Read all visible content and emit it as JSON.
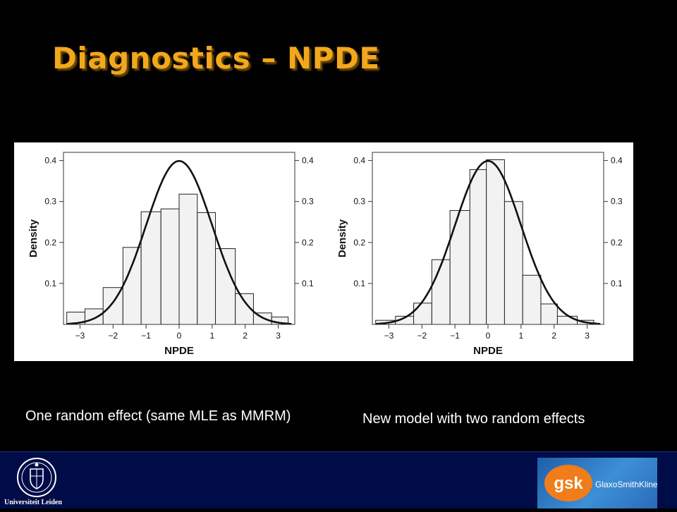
{
  "slide": {
    "title": "Diagnostics – NPDE",
    "caption_left": "One random effect (same MLE as MMRM)",
    "caption_right": "New model with two random effects",
    "footer": {
      "left_logo_text": "Universiteit Leiden",
      "right_logo_mark": "gsk",
      "right_logo_text": "GlaxoSmithKline"
    },
    "colors": {
      "background": "#000000",
      "title": "#f2a81d",
      "footer": "#000c48",
      "gsk_orange": "#f07c1a"
    }
  },
  "chart_data": [
    {
      "type": "bar",
      "xlabel": "NPDE",
      "ylabel": "Density",
      "xlim": [
        -3.5,
        3.5
      ],
      "ylim": [
        0,
        0.42
      ],
      "x_ticks": [
        -3,
        -2,
        -1,
        0,
        1,
        2,
        3
      ],
      "x_tick_labels": [
        "−3",
        "−2",
        "−1",
        "0",
        "1",
        "2",
        "3"
      ],
      "y_ticks": [
        0.1,
        0.2,
        0.3,
        0.4
      ],
      "y_tick_labels": [
        "0.1",
        "0.2",
        "0.3",
        "0.4"
      ],
      "bin_edges": [
        -3.4,
        -2.85,
        -2.3,
        -1.7,
        -1.15,
        -0.55,
        0,
        0.55,
        1.1,
        1.7,
        2.25,
        2.8,
        3.3
      ],
      "values": [
        0.03,
        0.038,
        0.09,
        0.188,
        0.275,
        0.282,
        0.318,
        0.273,
        0.185,
        0.075,
        0.028,
        0.018
      ],
      "overlay": "standard normal density",
      "grid": false
    },
    {
      "type": "bar",
      "xlabel": "NPDE",
      "ylabel": "Density",
      "xlim": [
        -3.5,
        3.5
      ],
      "ylim": [
        0,
        0.42
      ],
      "x_ticks": [
        -3,
        -2,
        -1,
        0,
        1,
        2,
        3
      ],
      "x_tick_labels": [
        "−3",
        "−2",
        "−1",
        "0",
        "1",
        "2",
        "3"
      ],
      "y_ticks": [
        0.1,
        0.2,
        0.3,
        0.4
      ],
      "y_tick_labels": [
        "0.1",
        "0.2",
        "0.3",
        "0.4"
      ],
      "bin_edges": [
        -3.4,
        -2.8,
        -2.25,
        -1.7,
        -1.15,
        -0.55,
        -0.05,
        0.5,
        1.05,
        1.6,
        2.1,
        2.7,
        3.2
      ],
      "values": [
        0.01,
        0.02,
        0.052,
        0.158,
        0.278,
        0.378,
        0.402,
        0.3,
        0.12,
        0.05,
        0.02,
        0.01
      ],
      "overlay": "standard normal density",
      "grid": false
    }
  ]
}
